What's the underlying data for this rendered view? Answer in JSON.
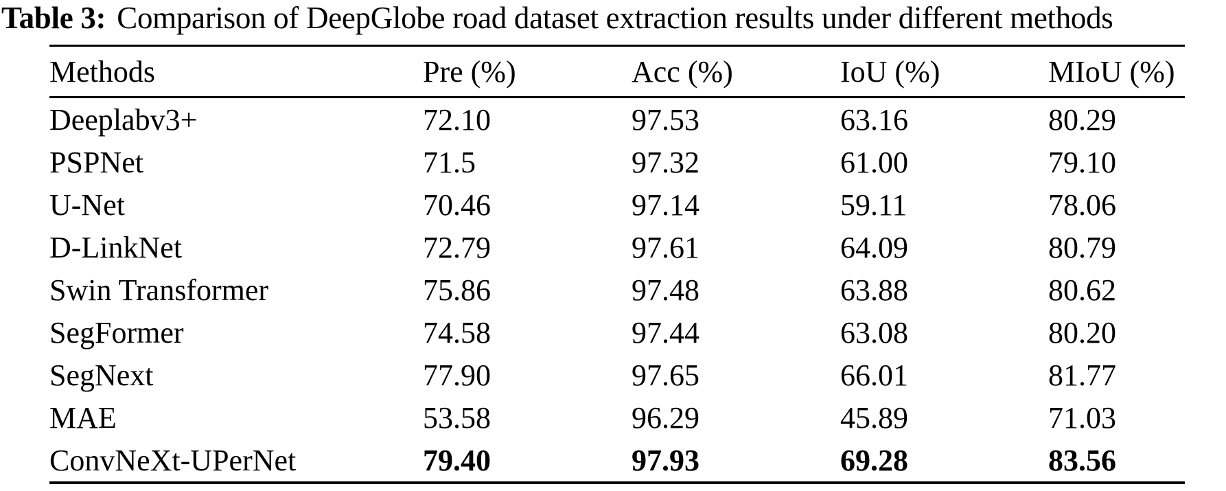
{
  "title": {
    "label": "Table 3:",
    "text": "Comparison of DeepGlobe road dataset extraction results under different methods"
  },
  "table": {
    "columns": [
      "Methods",
      "Pre (%)",
      "Acc (%)",
      "IoU (%)",
      "MIoU (%)"
    ],
    "rows": [
      {
        "method": "Deeplabv3+",
        "pre": "72.10",
        "acc": "97.53",
        "iou": "63.16",
        "miou": "80.29",
        "bold": false
      },
      {
        "method": "PSPNet",
        "pre": "71.5",
        "acc": "97.32",
        "iou": "61.00",
        "miou": "79.10",
        "bold": false
      },
      {
        "method": "U-Net",
        "pre": "70.46",
        "acc": "97.14",
        "iou": "59.11",
        "miou": "78.06",
        "bold": false
      },
      {
        "method": "D-LinkNet",
        "pre": "72.79",
        "acc": "97.61",
        "iou": "64.09",
        "miou": "80.79",
        "bold": false
      },
      {
        "method": "Swin Transformer",
        "pre": "75.86",
        "acc": "97.48",
        "iou": "63.88",
        "miou": "80.62",
        "bold": false
      },
      {
        "method": "SegFormer",
        "pre": "74.58",
        "acc": "97.44",
        "iou": "63.08",
        "miou": "80.20",
        "bold": false
      },
      {
        "method": "SegNext",
        "pre": "77.90",
        "acc": "97.65",
        "iou": "66.01",
        "miou": "81.77",
        "bold": false
      },
      {
        "method": "MAE",
        "pre": "53.58",
        "acc": "96.29",
        "iou": "45.89",
        "miou": "71.03",
        "bold": false
      },
      {
        "method": "ConvNeXt-UPerNet",
        "pre": "79.40",
        "acc": "97.93",
        "iou": "69.28",
        "miou": "83.56",
        "bold": true
      }
    ]
  },
  "colors": {
    "text": "#000000",
    "background": "#ffffff",
    "rule": "#000000"
  }
}
